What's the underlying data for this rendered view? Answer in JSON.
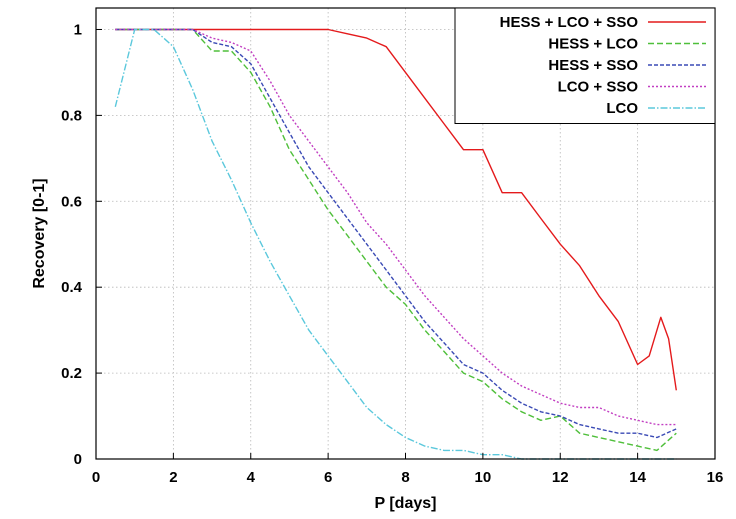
{
  "chart_data": {
    "type": "line",
    "xlabel": "P [days]",
    "ylabel": "Recovery [0-1]",
    "xlim": [
      0,
      16
    ],
    "ylim": [
      0,
      1.05
    ],
    "x_ticks": [
      0,
      2,
      4,
      6,
      8,
      10,
      12,
      14,
      16
    ],
    "y_ticks": [
      0,
      0.2,
      0.4,
      0.6,
      0.8,
      1
    ],
    "grid": true,
    "legend_position": "top-right",
    "series": [
      {
        "name": "HESS + LCO + SSO",
        "color": "#e41a1c",
        "dash": "solid",
        "x": [
          0.5,
          1,
          2,
          3,
          4,
          5,
          6,
          6.5,
          7,
          7.5,
          8,
          8.5,
          9,
          9.5,
          10,
          10.5,
          11,
          11.5,
          12,
          12.5,
          13,
          13.5,
          14,
          14.3,
          14.6,
          14.8,
          15
        ],
        "y": [
          1,
          1,
          1,
          1,
          1,
          1,
          1,
          0.99,
          0.98,
          0.96,
          0.9,
          0.84,
          0.78,
          0.72,
          0.72,
          0.62,
          0.62,
          0.56,
          0.5,
          0.45,
          0.38,
          0.32,
          0.22,
          0.24,
          0.33,
          0.28,
          0.16
        ]
      },
      {
        "name": "HESS + LCO",
        "color": "#4fbf3a",
        "dash": "6,3",
        "x": [
          0.5,
          1,
          1.5,
          2,
          2.5,
          3,
          3.5,
          4,
          4.5,
          5,
          5.5,
          6,
          6.5,
          7,
          7.5,
          8,
          8.5,
          9,
          9.5,
          10,
          10.5,
          11,
          11.5,
          12,
          12.5,
          13,
          13.5,
          14,
          14.5,
          15
        ],
        "y": [
          1,
          1,
          1,
          1,
          1,
          0.95,
          0.95,
          0.9,
          0.82,
          0.72,
          0.65,
          0.58,
          0.52,
          0.46,
          0.4,
          0.36,
          0.3,
          0.25,
          0.2,
          0.18,
          0.14,
          0.11,
          0.09,
          0.1,
          0.06,
          0.05,
          0.04,
          0.03,
          0.02,
          0.06
        ]
      },
      {
        "name": "HESS + SSO",
        "color": "#3a4ab5",
        "dash": "4,2",
        "x": [
          0.5,
          1,
          1.5,
          2,
          2.5,
          3,
          3.5,
          4,
          4.5,
          5,
          5.5,
          6,
          6.5,
          7,
          7.5,
          8,
          8.5,
          9,
          9.5,
          10,
          10.5,
          11,
          11.5,
          12,
          12.5,
          13,
          13.5,
          14,
          14.5,
          15
        ],
        "y": [
          1,
          1,
          1,
          1,
          1,
          0.97,
          0.96,
          0.92,
          0.84,
          0.76,
          0.68,
          0.62,
          0.56,
          0.5,
          0.44,
          0.38,
          0.32,
          0.27,
          0.22,
          0.2,
          0.16,
          0.13,
          0.11,
          0.1,
          0.08,
          0.07,
          0.06,
          0.06,
          0.05,
          0.07
        ]
      },
      {
        "name": "LCO + SSO",
        "color": "#c23fc2",
        "dash": "2,2",
        "x": [
          0.5,
          1,
          1.5,
          2,
          2.5,
          3,
          3.5,
          4,
          4.5,
          5,
          5.5,
          6,
          6.5,
          7,
          7.5,
          8,
          8.5,
          9,
          9.5,
          10,
          10.5,
          11,
          11.5,
          12,
          12.5,
          13,
          13.5,
          14,
          14.5,
          15
        ],
        "y": [
          1,
          1,
          1,
          1,
          1,
          0.98,
          0.97,
          0.95,
          0.88,
          0.8,
          0.74,
          0.68,
          0.62,
          0.55,
          0.5,
          0.44,
          0.38,
          0.33,
          0.28,
          0.24,
          0.2,
          0.17,
          0.15,
          0.13,
          0.12,
          0.12,
          0.1,
          0.09,
          0.08,
          0.08
        ]
      },
      {
        "name": "LCO",
        "color": "#5bc8dc",
        "dash": "7,2,1.5,2",
        "x": [
          0.5,
          1,
          1.5,
          2,
          2.5,
          3,
          3.5,
          4,
          4.5,
          5,
          5.5,
          6,
          6.5,
          7,
          7.5,
          8,
          8.5,
          9,
          9.5,
          10,
          10.5,
          11,
          11.5,
          12,
          12.5,
          13,
          13.5,
          14,
          14.5,
          15
        ],
        "y": [
          0.82,
          1,
          1,
          0.96,
          0.86,
          0.74,
          0.65,
          0.55,
          0.46,
          0.38,
          0.3,
          0.24,
          0.18,
          0.12,
          0.08,
          0.05,
          0.03,
          0.02,
          0.02,
          0.01,
          0.01,
          0.0,
          0.0,
          0.0,
          0.0,
          0.0,
          0.0,
          0.0,
          0.0,
          0.0
        ]
      }
    ]
  }
}
